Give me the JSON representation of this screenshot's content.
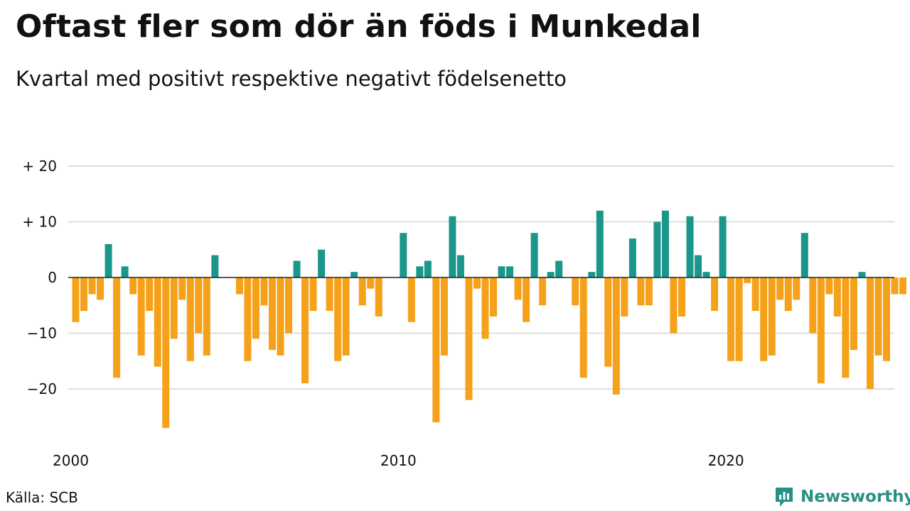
{
  "title": "Oftast fler som dör än föds i Munkedal",
  "subtitle": "Kvartal med positivt respektive negativt födelsenetto",
  "source": "Källa: SCB",
  "brand": {
    "name": "Newsworthy",
    "icon": "newsworthy-logo-icon",
    "color": "#2a8f86"
  },
  "colors": {
    "positive": "#1b968a",
    "negative": "#f5a11a",
    "grid": "#dedede",
    "zero": "#222222"
  },
  "chart_data": {
    "type": "bar",
    "x_start": "2000-Q1",
    "x_ticks": [
      {
        "label": "2000",
        "index": 0
      },
      {
        "label": "2010",
        "index": 40
      },
      {
        "label": "2020",
        "index": 80
      }
    ],
    "y_ticks": [
      {
        "label": "+ 20",
        "value": 20
      },
      {
        "label": "+ 10",
        "value": 10
      },
      {
        "label": "0",
        "value": 0
      },
      {
        "label": "−10",
        "value": -10
      },
      {
        "label": "−20",
        "value": -20
      }
    ],
    "ylim": [
      -30,
      20
    ],
    "grid": true,
    "values": [
      -8,
      -6,
      -3,
      -4,
      6,
      -18,
      2,
      -3,
      -14,
      -6,
      -16,
      -27,
      -11,
      -4,
      -15,
      -10,
      -14,
      4,
      0,
      0,
      -3,
      -15,
      -11,
      -5,
      -13,
      -14,
      -10,
      3,
      -19,
      -6,
      5,
      -6,
      -15,
      -14,
      1,
      -5,
      -2,
      -7,
      0,
      0,
      8,
      -8,
      2,
      3,
      -26,
      -14,
      11,
      4,
      -22,
      -2,
      -11,
      -7,
      2,
      2,
      -4,
      -8,
      8,
      -5,
      1,
      3,
      0,
      -5,
      -18,
      1,
      12,
      -16,
      -21,
      -7,
      7,
      -5,
      -5,
      10,
      12,
      -10,
      -7,
      11,
      4,
      1,
      -6,
      11,
      -15,
      -15,
      -1,
      -6,
      -15,
      -14,
      -4,
      -6,
      -4,
      8,
      -10,
      -19,
      -3,
      -7,
      -18,
      -13,
      1,
      -20,
      -14,
      -15,
      -3,
      -3
    ]
  }
}
